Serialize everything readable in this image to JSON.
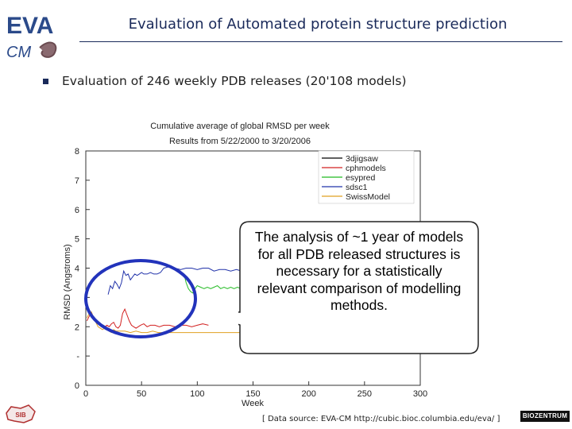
{
  "header": {
    "logo_top": "EVA",
    "logo_bottom": "CM",
    "title": "Evaluation of Automated protein structure prediction"
  },
  "bullet": {
    "text": "Evaluation of 246 weekly PDB releases (20'108 models)"
  },
  "chart_data": {
    "type": "line",
    "title": "Cumulative average of global RMSD per week",
    "subtitle": "Results from 5/22/2000 to 3/20/2006",
    "xlabel": "Week",
    "ylabel": "RMSD (Angstroms)",
    "xlim": [
      0,
      300
    ],
    "ylim": [
      0,
      8
    ],
    "xticks": [
      0,
      50,
      100,
      150,
      200,
      250,
      300
    ],
    "yticks": [
      0,
      1,
      2,
      3,
      4,
      5,
      6,
      7,
      8
    ],
    "ytick_labels": [
      "0",
      "-",
      "2",
      "",
      "4",
      "5",
      "6",
      "7",
      "8"
    ],
    "grid": false,
    "legend_position": "top-right",
    "series": [
      {
        "name": "3djigsaw",
        "color": "#000000",
        "x": [],
        "y": []
      },
      {
        "name": "cphmodels",
        "color": "#d22020",
        "x": [
          1,
          3,
          5,
          7,
          9,
          11,
          13,
          15,
          17,
          19,
          21,
          23,
          25,
          27,
          29,
          31,
          33,
          35,
          37,
          39,
          41,
          43,
          45,
          47,
          49,
          52,
          55,
          58,
          62,
          66,
          70,
          75,
          80,
          85,
          90,
          95,
          100,
          105,
          110
        ],
        "y": [
          2.2,
          2.35,
          2.5,
          2.3,
          2.2,
          2.15,
          2.1,
          2.05,
          2.0,
          2.05,
          2.0,
          2.1,
          2.15,
          2.0,
          1.95,
          2.05,
          2.45,
          2.6,
          2.4,
          2.2,
          2.05,
          2.0,
          1.95,
          2.0,
          2.05,
          2.1,
          2.0,
          2.05,
          2.05,
          2.0,
          2.05,
          2.05,
          2.0,
          2.05,
          2.05,
          2.0,
          2.05,
          2.1,
          2.05
        ]
      },
      {
        "name": "esypred",
        "color": "#22bb22",
        "x": [
          88,
          90,
          92,
          94,
          96,
          98,
          100,
          103,
          106,
          109,
          112,
          115,
          118,
          121,
          124,
          127,
          130,
          133,
          136,
          139,
          142,
          145,
          148,
          150
        ],
        "y": [
          3.8,
          3.5,
          3.3,
          3.2,
          3.15,
          3.3,
          3.4,
          3.35,
          3.3,
          3.35,
          3.3,
          3.35,
          3.4,
          3.3,
          3.35,
          3.3,
          3.35,
          3.3,
          3.35,
          3.3,
          3.3,
          3.35,
          3.3,
          3.3
        ]
      },
      {
        "name": "sdsc1",
        "color": "#2233aa",
        "x": [
          20,
          22,
          24,
          26,
          28,
          30,
          32,
          34,
          36,
          38,
          40,
          42,
          44,
          46,
          48,
          50,
          52,
          55,
          58,
          61,
          64,
          67,
          70,
          75,
          80,
          85,
          90,
          95,
          100,
          105,
          110,
          115,
          120,
          125,
          130,
          135,
          140,
          145,
          150
        ],
        "y": [
          3.1,
          3.4,
          3.3,
          3.55,
          3.45,
          3.3,
          3.5,
          3.9,
          3.75,
          3.8,
          3.6,
          3.7,
          3.8,
          3.75,
          3.8,
          3.85,
          3.8,
          3.8,
          3.85,
          3.8,
          3.8,
          3.85,
          4.0,
          4.05,
          4.0,
          3.95,
          4.0,
          4.0,
          3.95,
          4.0,
          4.0,
          3.9,
          3.95,
          3.95,
          3.9,
          3.95,
          3.9,
          3.95,
          3.9
        ]
      },
      {
        "name": "SwissModel",
        "color": "#e0a020",
        "x": [
          1,
          3,
          5,
          7,
          9,
          11,
          13,
          15,
          17,
          19,
          21,
          23,
          25,
          27,
          30,
          35,
          40,
          45,
          50,
          55,
          60,
          65,
          70,
          75,
          80,
          85,
          90,
          95,
          100,
          105,
          110,
          115,
          120,
          125,
          130,
          135,
          140,
          145,
          150
        ],
        "y": [
          2.3,
          2.45,
          2.5,
          2.3,
          2.15,
          2.0,
          1.95,
          1.9,
          1.95,
          1.9,
          1.85,
          1.8,
          1.9,
          1.85,
          1.85,
          1.85,
          1.8,
          1.85,
          1.8,
          1.8,
          1.85,
          1.8,
          1.8,
          1.8,
          1.8,
          1.8,
          1.8,
          1.8,
          1.8,
          1.8,
          1.8,
          1.8,
          1.8,
          1.8,
          1.8,
          1.8,
          1.8,
          1.8,
          1.8
        ]
      }
    ]
  },
  "callout": {
    "text": "The analysis of ~1 year of models for all PDB released structures is necessary for a statistically relevant comparison of modelling methods."
  },
  "highlight": {
    "color": "#2233bb"
  },
  "footer": {
    "source": "[ Data source: EVA-CM http://cubic.bioc.columbia.edu/eva/ ]",
    "left_logo": "SIB",
    "right_logo": "BIOZENTRUM"
  }
}
